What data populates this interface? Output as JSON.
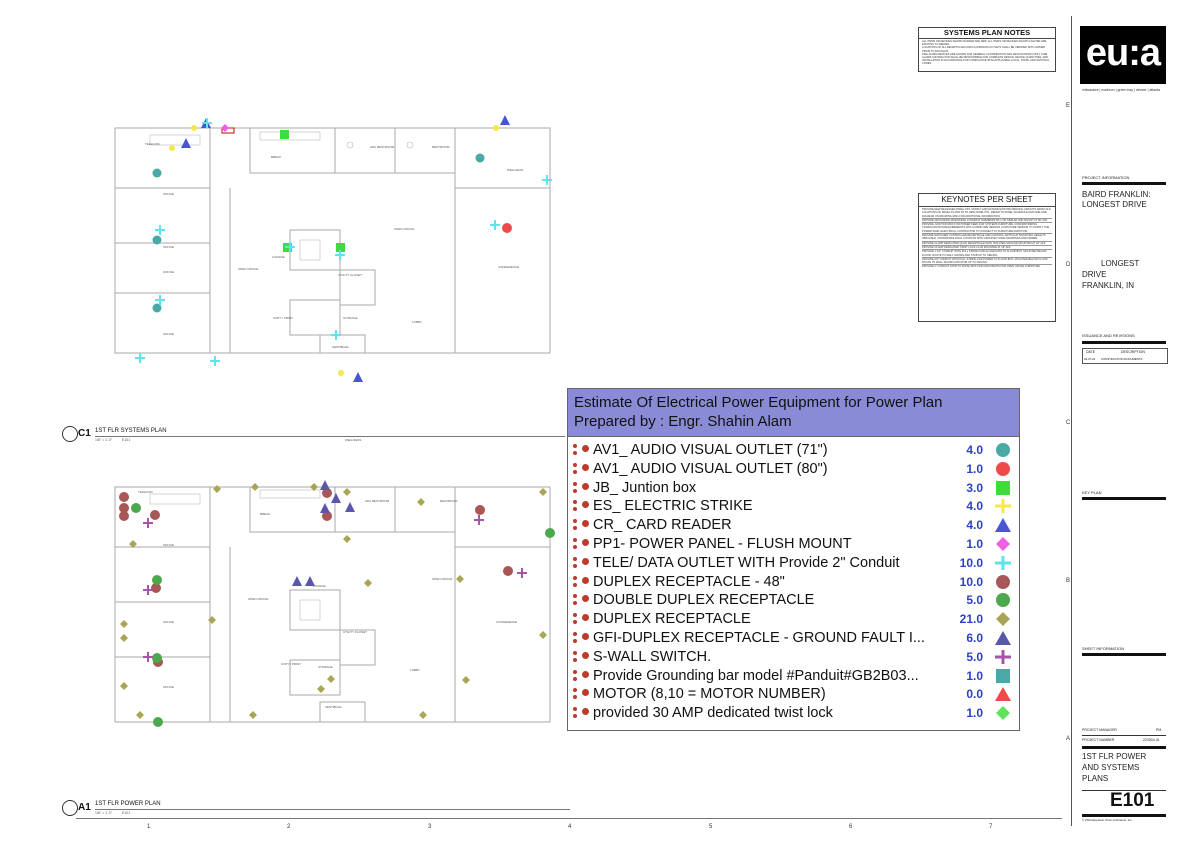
{
  "systems_plan_notes": {
    "title": "SYSTEMS PLAN NOTES",
    "items": [
      "ALL ITEMS OR DEVICES SHOWN DARKER ARE NEW, ALL ITEMS OR DEVICES SHOWN LIGHTER ARE EXISTING TO REMAIN.",
      "LOCATIONS OF ALL RECEPTACLES AND FLOOR/DATA OUTLETS SHALL BE VERIFIED WITH OWNER PRIOR TO ROUGH-IN.",
      "FIRE ALARM DEVICES ARE SHOWN FOR GENERAL COORDINATION AND DESIGN INTENT ONLY. FIRE ALARM CONTRACTOR SHALL BE RESPONSIBLE FOR COMPLETE DESIGN, DEVICE QUANTITIES, AND INSTALLATION IN ACCORDANCE FOR COMPLIANCE WITH APPLICABLE LOCAL, STATE, AND NATIONAL CODES."
    ]
  },
  "keynotes": {
    "title": "KEYNOTES PER SHEET",
    "items": [
      "PROVIDE NEW RECESSED PANEL PP1. MODIFY AND EXTEND EXISTING BRANCH CIRCUITS FROM OLD LOCATIONS OF PANEL P1 AND P2 TO NEW PANEL PP1. REFER TO PANEL SCHEDULE AND ONE-LINE DIAGRAM ON DRAWING E501 FOR ADDITIONAL INFORMATION.",
      "PROVIDE GROUNDING BAR MODEL # PANDUIT #GB2B0304TPI-1 OR SIMILAR AND MOUNT AT 96\" AFF.",
      "PROVIDE JUNCTION BOX FOR POWER FEED FOR SYSTEMS FURNITURE. CONFIRM WIRING CONFIGURATION REQUIREMENTS WITH FURNITURE VENDOR. FURNITURE VENDOR TO SUPPLY THE POWER WHIP. ELECTRICAL CONTRACTOR TO CONNECT TO FURNITURE PARTITION.",
      "PROVIDE SWITCHED CONTROLLED RECEPTACLE AND CONTROL SWITCH AT MOUNTING HEIGHTS INDICATED. COORDINATE FINAL LOCATION WITH ARCHITECTURAL DRAWINGS AND OWNER.",
      "PROVIDE CLAMP DEDICATED QUAD RECEPTACLE WITH ISOLATED GROUND MOUNTED AT 18\" AFF.",
      "PROVIDE 30 AMP DEDICATED TWIST LOCK LS-30 MOUNTED AT 18\" AFF.",
      "PROVIDE 1-1/2\" CONDUIT WITH PULL STRING FOR AV AND DATA TO FLOOR BOX. MOUNTED BELOW FLOOR. ROUTE TO WALL SHOWN AND STUB UP TO CEILING.",
      "PROVIDE 3/4\" CONDUIT WITH PULL STRING FOR POWER TO FLOOR BOX. MOUNTED BELOW FLOOR. ROUTE TO WALL SHOWN AND STUB UP TO CEILING.",
      "PROVIDE 2\" CONDUIT STUB TO FINISH BOX FOR DATA DROPS FOR OPEN OFFICE FURNITURE."
    ]
  },
  "firm": {
    "logo_text": "eu:a",
    "cities": "milwaukee | madison | green bay | denver | atlanta"
  },
  "project_info": {
    "header": "PROJECT INFORMATION",
    "name_line1": "BAIRD FRANKLIN:",
    "name_line2": "LONGEST DRIVE",
    "addr_line1": "LONGEST",
    "addr_line2": "DRIVE",
    "addr_line3": "FRANKLIN, IN"
  },
  "issuance": {
    "header": "ISSUANCE AND REVISIONS",
    "col_date": "DATE",
    "col_desc": "DESCRIPTION",
    "row_date": "03-07-24",
    "row_desc": "CONSTRUCTION DOCUMENTS"
  },
  "key_plan": {
    "header": "KEY PLAN"
  },
  "sheet_info": {
    "header": "SHEET INFORMATION"
  },
  "sheet": {
    "pm_label": "PROJECT MANAGER",
    "pm_value": "PM",
    "pn_label": "PROJECT NUMBER",
    "pn_value": "223904-01",
    "title1": "1ST FLR POWER",
    "title2": "AND SYSTEMS",
    "title3": "PLANS",
    "number": "E101",
    "copyright": "© 2024 Eppstein Uhen Architects, Inc."
  },
  "grid": {
    "numbers": [
      "1",
      "2",
      "3",
      "4",
      "5",
      "6",
      "7"
    ],
    "letters": [
      "E",
      "D",
      "C",
      "B",
      "A"
    ]
  },
  "plans": {
    "systems": {
      "id": "C1",
      "title": "1ST FLR SYSTEMS PLAN",
      "scale": "1/8\" = 1'-0\"",
      "ref": "E101"
    },
    "power": {
      "id": "A1",
      "title": "1ST FLR POWER PLAN",
      "scale": "1/8\" = 1'-0\"",
      "ref": "E101"
    }
  },
  "rooms": {
    "telecom": "TELECOM",
    "office": "OFFICE",
    "break": "BREAK",
    "ada_restroom": "ADA RESTROOM",
    "restroom": "RESTROOM",
    "open_office": "OPEN OFFICE",
    "conference": "CONFERENCE",
    "lobby": "LOBBY",
    "copy_print": "COPY / PRINT",
    "storage": "STORAGE",
    "vestibule": "VESTIBULE",
    "utility_closet": "UTILITY CLOSET",
    "lounge": "LOUNGE",
    "wellness": "WELLNESS"
  },
  "estimate": {
    "title": "Estimate Of Electrical Power Equipment for Power Plan",
    "subtitle": "Prepared by : Engr. Shahin Alam",
    "rows": [
      {
        "name": "AV1_ AUDIO VISUAL OUTLET (71\")",
        "qty": "4.0",
        "icon": "circle",
        "color": "#4aa9a5"
      },
      {
        "name": "AV1_ AUDIO VISUAL OUTLET (80\")",
        "qty": "1.0",
        "icon": "circle",
        "color": "#ee4a4a"
      },
      {
        "name": "JB_ Juntion box",
        "qty": "3.0",
        "icon": "square",
        "color": "#3ddc3a"
      },
      {
        "name": "ES_ ELECTRIC STRIKE",
        "qty": "4.0",
        "icon": "cross",
        "color": "#f3ea4a"
      },
      {
        "name": "CR_ CARD READER",
        "qty": "4.0",
        "icon": "triangle",
        "color": "#4a55d6"
      },
      {
        "name": "PP1- POWER PANEL - FLUSH MOUNT",
        "qty": "1.0",
        "icon": "diamond",
        "color": "#ee5fe6"
      },
      {
        "name": "TELE/ DATA OUTLET WITH Provide 2\" Conduit",
        "qty": "10.0",
        "icon": "cross",
        "color": "#5fe3ee"
      },
      {
        "name": "DUPLEX RECEPTACLE - 48\"",
        "qty": "10.0",
        "icon": "circle",
        "color": "#a85656"
      },
      {
        "name": "DOUBLE DUPLEX RECEPTACLE",
        "qty": "5.0",
        "icon": "circle",
        "color": "#4ca84c"
      },
      {
        "name": "DUPLEX RECEPTACLE",
        "qty": "21.0",
        "icon": "diamond",
        "color": "#a8a556"
      },
      {
        "name": "GFI-DUPLEX RECEPTACLE - GROUND FAULT I...",
        "qty": "6.0",
        "icon": "triangle",
        "color": "#5a57a8"
      },
      {
        "name": "S-WALL SWITCH.",
        "qty": "5.0",
        "icon": "cross",
        "color": "#a556a8"
      },
      {
        "name": "Provide Grounding bar model #Panduit#GB2B03...",
        "qty": "1.0",
        "icon": "square",
        "color": "#4aa9a5"
      },
      {
        "name": "MOTOR (8,10 = MOTOR NUMBER)",
        "qty": "0.0",
        "icon": "triangle",
        "color": "#ee4a4a"
      },
      {
        "name": "provided 30 AMP dedicated twist lock",
        "qty": "1.0",
        "icon": "diamond",
        "color": "#5fe35a"
      }
    ]
  }
}
